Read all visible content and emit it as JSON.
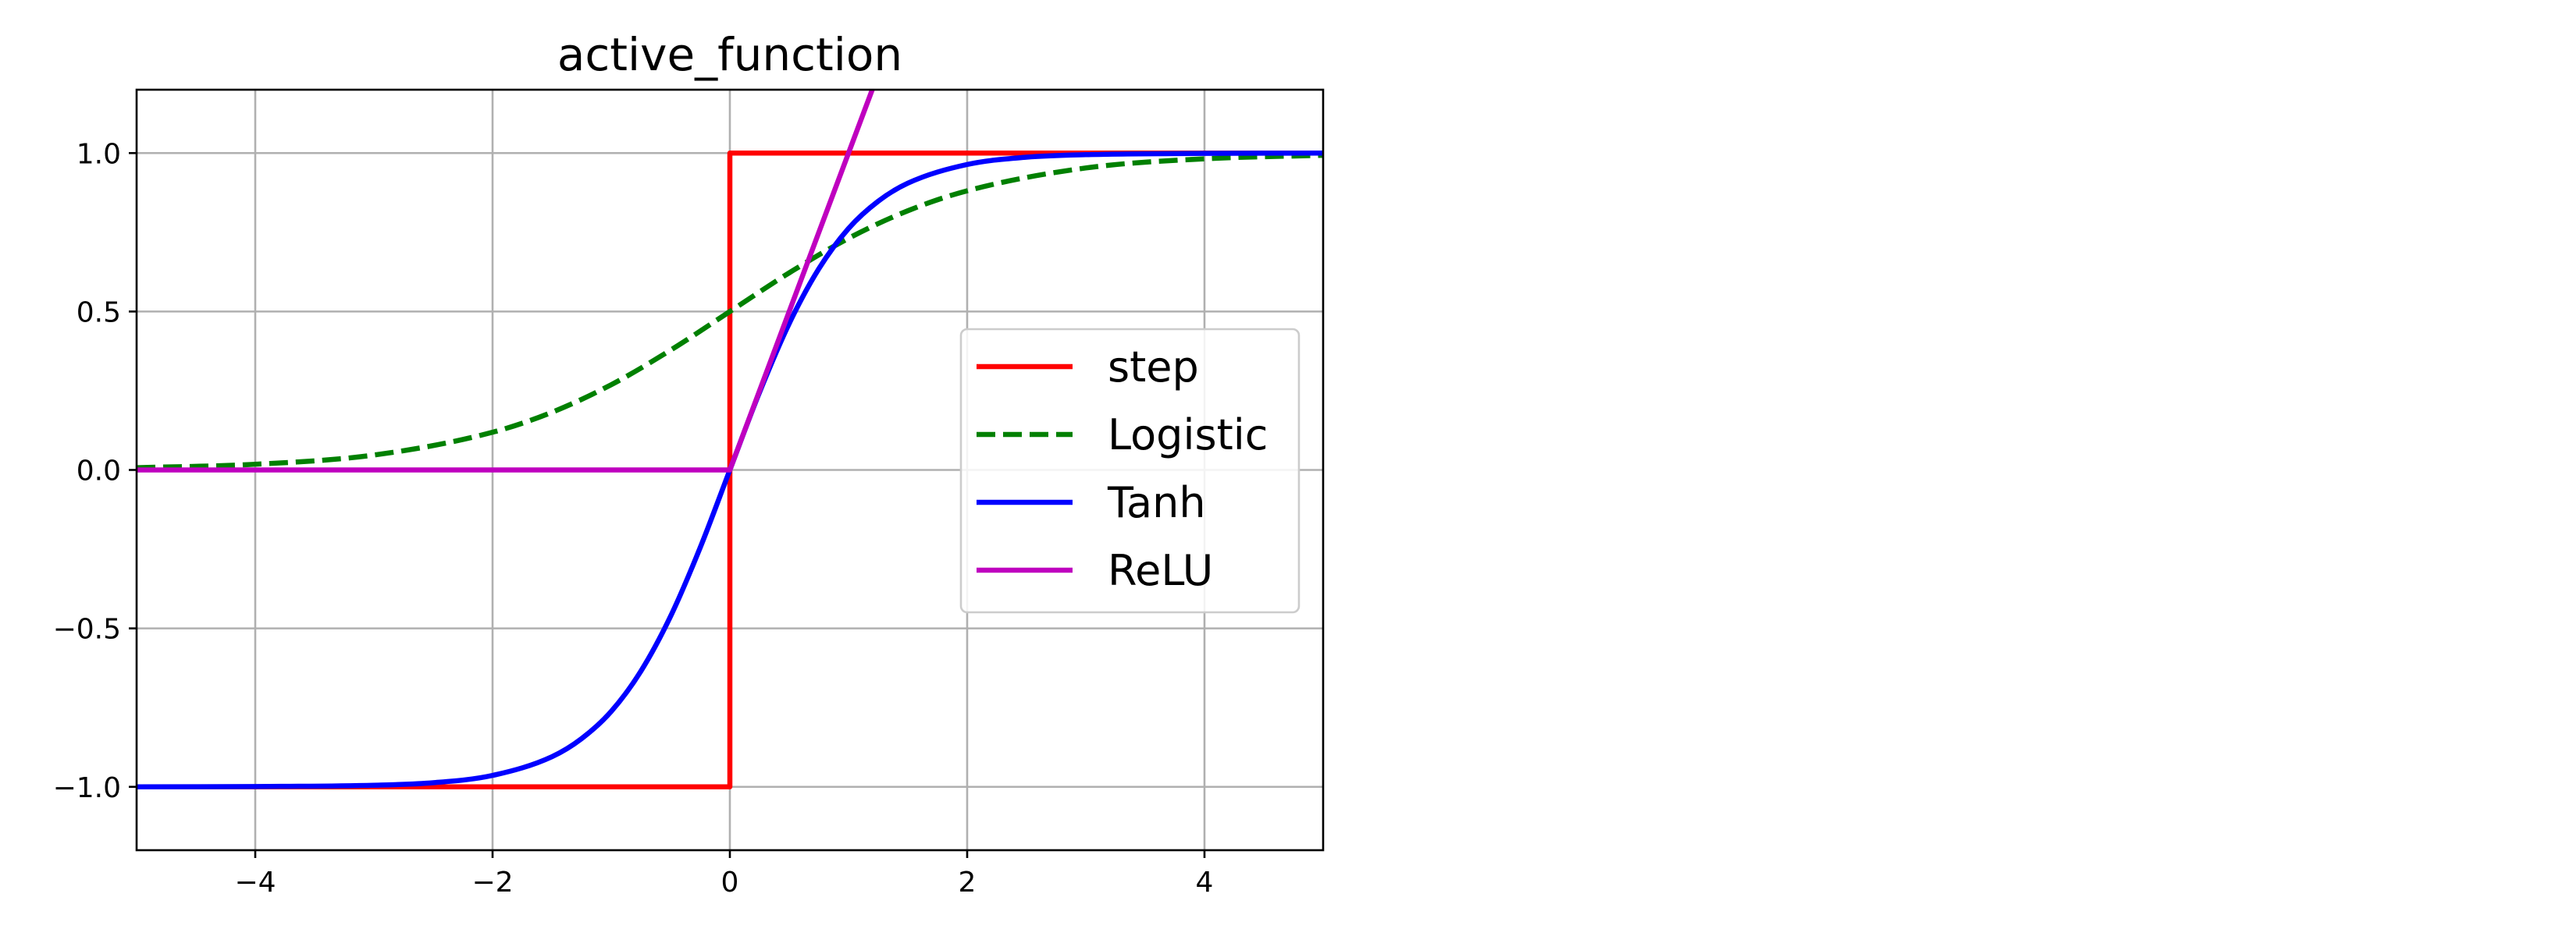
{
  "chart_data": {
    "type": "line",
    "title": "active_function",
    "xlabel": "",
    "ylabel": "",
    "xlim": [
      -5,
      5
    ],
    "ylim": [
      -1.2,
      1.2
    ],
    "grid": true,
    "legend_position": "center-right",
    "xticks": [
      -4,
      -2,
      0,
      2,
      4
    ],
    "xtick_labels": [
      "−4",
      "−2",
      "0",
      "2",
      "4"
    ],
    "yticks": [
      -1.0,
      -0.5,
      0.0,
      0.5,
      1.0
    ],
    "ytick_labels": [
      "−1.0",
      "−0.5",
      "0.0",
      "0.5",
      "1.0"
    ],
    "series": [
      {
        "name": "step",
        "color": "#ff0000",
        "dash": "solid",
        "x": [
          -5,
          0,
          0,
          5
        ],
        "y": [
          -1,
          -1,
          1,
          1
        ]
      },
      {
        "name": "Logistic",
        "color": "#008000",
        "dash": "dashed",
        "x": [
          -5,
          -4,
          -3,
          -2,
          -1.5,
          -1,
          -0.5,
          0,
          0.5,
          1,
          1.5,
          2,
          3,
          4,
          5
        ],
        "y": [
          0.007,
          0.018,
          0.047,
          0.119,
          0.182,
          0.269,
          0.378,
          0.5,
          0.622,
          0.731,
          0.818,
          0.881,
          0.953,
          0.982,
          0.993
        ]
      },
      {
        "name": "Tanh",
        "color": "#0000ff",
        "dash": "solid",
        "x": [
          -5,
          -4,
          -3,
          -2.5,
          -2,
          -1.5,
          -1.25,
          -1,
          -0.75,
          -0.5,
          -0.25,
          0,
          0.25,
          0.5,
          0.75,
          1,
          1.25,
          1.5,
          2,
          2.5,
          3,
          4,
          5
        ],
        "y": [
          -1.0,
          -0.999,
          -0.995,
          -0.987,
          -0.964,
          -0.905,
          -0.848,
          -0.762,
          -0.635,
          -0.462,
          -0.245,
          0.0,
          0.245,
          0.462,
          0.635,
          0.762,
          0.848,
          0.905,
          0.964,
          0.987,
          0.995,
          0.999,
          1.0
        ]
      },
      {
        "name": "ReLU",
        "color": "#bf00bf",
        "dash": "solid",
        "x": [
          -5,
          0,
          1.2
        ],
        "y": [
          0,
          0,
          1.2
        ]
      }
    ]
  }
}
